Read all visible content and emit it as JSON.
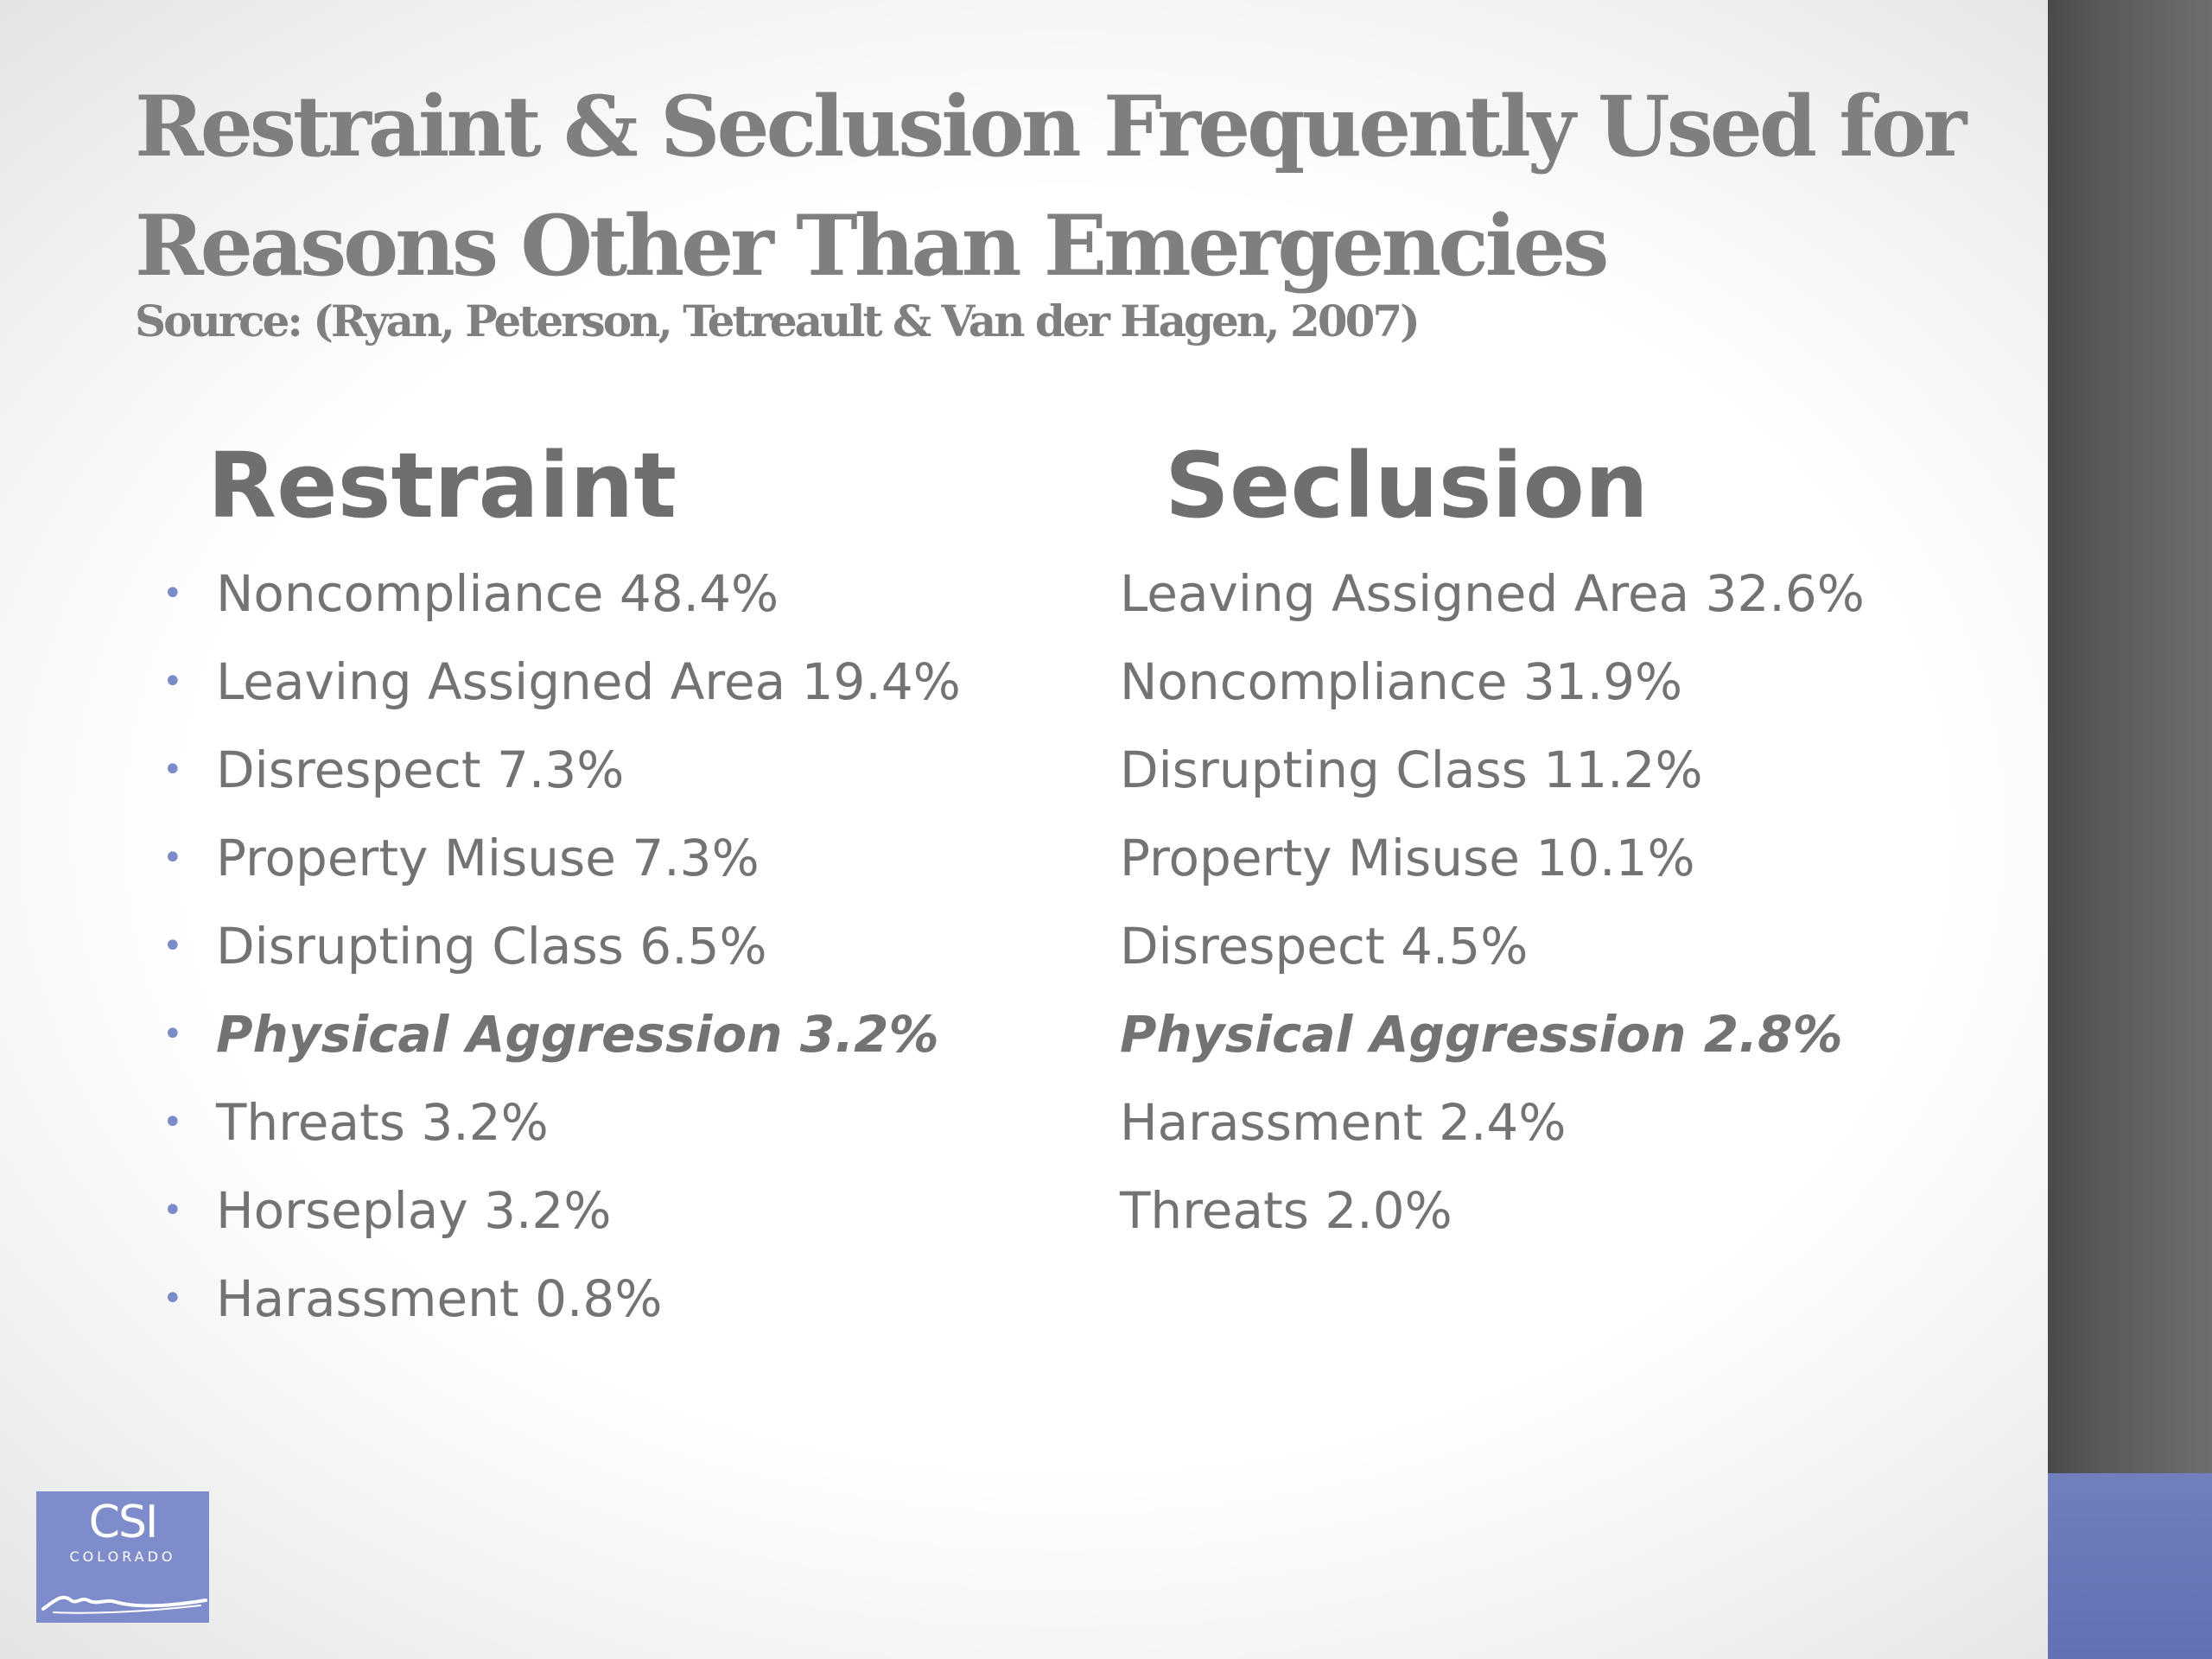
{
  "slide": {
    "title_lines": [
      "Restraint & Seclusion Frequently Used for",
      "Reasons Other Than Emergencies"
    ],
    "source": "Source: (Ryan, Peterson, Tetreault & Van der Hagen, 2007)"
  },
  "restraint": {
    "heading": "Restraint",
    "items": [
      "Noncompliance 48.4%",
      "Leaving Assigned Area 19.4%",
      "Disrespect 7.3%",
      "Property Misuse 7.3%",
      "Disrupting Class 6.5%",
      "Physical Aggression 3.2%",
      "Threats 3.2%",
      "Horseplay 3.2%",
      "Harassment 0.8%"
    ]
  },
  "seclusion": {
    "heading": "Seclusion",
    "items": [
      "Leaving Assigned Area 32.6%",
      "Noncompliance 31.9%",
      "Disrupting Class 11.2%",
      "Property Misuse 10.1%",
      "Disrespect 4.5%",
      "Physical Aggression 2.8%",
      "Harassment 2.4%",
      "Threats 2.0%"
    ]
  },
  "logo": {
    "text_main": "CSI",
    "text_sub": "COLORADO",
    "icon": "mountain-swoosh-icon"
  },
  "colors": {
    "text_gray": "#7f7f7f",
    "bullet_blue": "#7b8bc9",
    "sidebar_dark": "#555555",
    "sidebar_accent": "#6f7fbf",
    "logo_bg": "#7f8ccc"
  }
}
